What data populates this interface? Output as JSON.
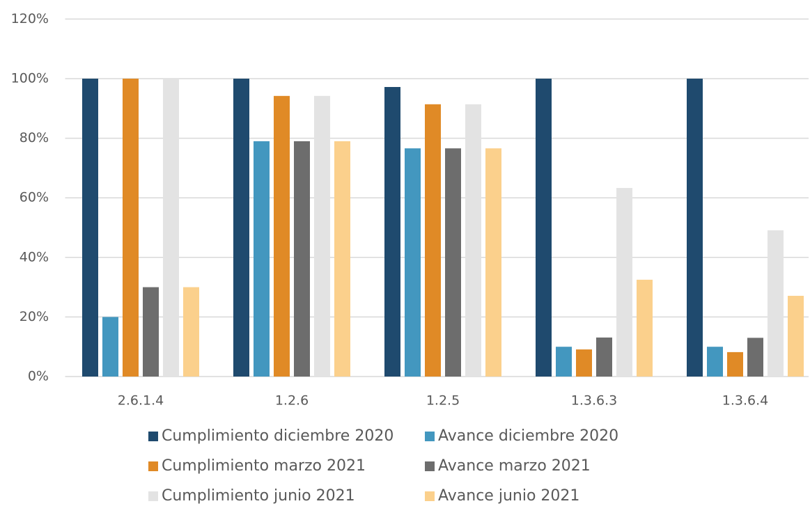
{
  "chart_data": {
    "type": "bar",
    "categories": [
      "2.6.1.4",
      "1.2.6",
      "1.2.5",
      "1.3.6.3",
      "1.3.6.4"
    ],
    "series": [
      {
        "name": "Cumplimiento diciembre 2020",
        "color": "#1f4a6e",
        "values": [
          100,
          100,
          97.2,
          100,
          100
        ]
      },
      {
        "name": "Avance diciembre 2020",
        "color": "#4397bf",
        "values": [
          20,
          79,
          76.6,
          10,
          10
        ]
      },
      {
        "name": "Cumplimiento marzo 2021",
        "color": "#e08a26",
        "values": [
          100,
          94.2,
          91.4,
          9.1,
          8.2
        ]
      },
      {
        "name": "Avance marzo 2021",
        "color": "#6d6d6d",
        "values": [
          30,
          79,
          76.6,
          13.1,
          13
        ]
      },
      {
        "name": "Cumplimiento junio 2021",
        "color": "#e3e3e3",
        "values": [
          100,
          94.2,
          91.4,
          63.3,
          49.1
        ]
      },
      {
        "name": "Avance junio 2021",
        "color": "#fbd08c",
        "values": [
          30,
          79,
          76.6,
          32.5,
          27.1
        ]
      }
    ],
    "ylim": [
      0,
      120
    ],
    "yticks": [
      {
        "value": 0,
        "label": "0%"
      },
      {
        "value": 20,
        "label": "20%"
      },
      {
        "value": 40,
        "label": "40%"
      },
      {
        "value": 60,
        "label": "60%"
      },
      {
        "value": 80,
        "label": "80%"
      },
      {
        "value": 100,
        "label": "100%"
      },
      {
        "value": 120,
        "label": "120%"
      }
    ],
    "grid": true
  }
}
